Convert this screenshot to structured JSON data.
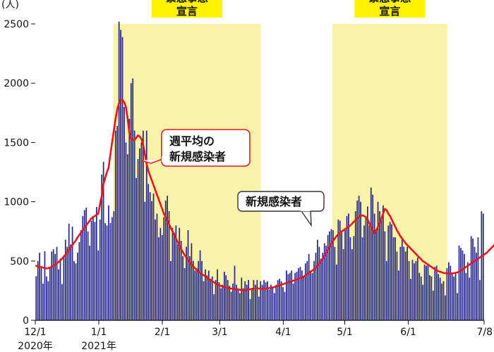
{
  "chart_data": {
    "type": "bar",
    "unit_label": "(人)",
    "y_ticks": [
      0,
      500,
      1000,
      1500,
      2000,
      2500
    ],
    "ylim": [
      0,
      2500
    ],
    "x_start": "2020-12-01",
    "x_end": "2021-07-08",
    "x_ticks": [
      {
        "date": "2020-12-01",
        "label": "12/1",
        "sublabel": "2020年"
      },
      {
        "date": "2021-01-01",
        "label": "1/1",
        "sublabel": "2021年"
      },
      {
        "date": "2021-02-01",
        "label": "2/1",
        "sublabel": ""
      },
      {
        "date": "2021-03-01",
        "label": "3/1",
        "sublabel": ""
      },
      {
        "date": "2021-04-01",
        "label": "4/1",
        "sublabel": ""
      },
      {
        "date": "2021-05-01",
        "label": "5/1",
        "sublabel": ""
      },
      {
        "date": "2021-06-01",
        "label": "6/1",
        "sublabel": ""
      },
      {
        "date": "2021-07-08",
        "label": "7/8",
        "sublabel": ""
      }
    ],
    "emergency_periods": [
      {
        "start": "2021-01-08",
        "end": "2021-03-21",
        "label_line1": "緊急事態",
        "label_line2": "宣言"
      },
      {
        "start": "2021-04-25",
        "end": "2021-06-20",
        "label_line1": "緊急事態",
        "label_line2": "宣言"
      }
    ],
    "series": [
      {
        "name": "新規感染者",
        "color": "#2a2a8a",
        "type": "bar",
        "values": [
          372,
          500,
          570,
          450,
          310,
          583,
          370,
          330,
          450,
          580,
          600,
          560,
          620,
          430,
          520,
          306,
          530,
          680,
          620,
          815,
          640,
          790,
          500,
          480,
          570,
          660,
          760,
          880,
          930,
          950,
          750,
          630,
          840,
          880,
          830,
          956,
          590,
          850,
          1230,
          1337,
          820,
          800,
          970,
          820,
          870,
          920,
          1600,
          1640,
          2520,
          2450,
          2390,
          1800,
          1500,
          1400,
          1700,
          2000,
          2040,
          1600,
          1200,
          1360,
          1450,
          1500,
          1600,
          1000,
          1600,
          1150,
          1080,
          1005,
          1070,
          850,
          900,
          700,
          780,
          720,
          870,
          1010,
          1050,
          920,
          500,
          780,
          740,
          800,
          640,
          780,
          670,
          540,
          440,
          620,
          760,
          540,
          650,
          500,
          420,
          440,
          500,
          590,
          500,
          330,
          430,
          380,
          420,
          350,
          370,
          220,
          340,
          430,
          320,
          270,
          300,
          410,
          380,
          340,
          290,
          240,
          310,
          460,
          300,
          270,
          230,
          360,
          270,
          330,
          300,
          340,
          180,
          270,
          340,
          300,
          340,
          200,
          330,
          300,
          340,
          320,
          330,
          260,
          300,
          280,
          230,
          300,
          340,
          350,
          330,
          280,
          240,
          420,
          390,
          400,
          420,
          310,
          400,
          410,
          440,
          450,
          420,
          370,
          480,
          500,
          560,
          420,
          400,
          500,
          570,
          680,
          620,
          520,
          570,
          650,
          630,
          720,
          750,
          770,
          760,
          620,
          470,
          850,
          840,
          740,
          600,
          760,
          880,
          900,
          700,
          600,
          710,
          920,
          1010,
          1050,
          1000,
          700,
          800,
          870,
          960,
          800,
          1120,
          1060,
          900,
          760,
          1000,
          920,
          850,
          970,
          750,
          500,
          800,
          830,
          810,
          700,
          700,
          580,
          420,
          620,
          680,
          620,
          580,
          620,
          500,
          350,
          510,
          480,
          500,
          530,
          400,
          370,
          300,
          470,
          460,
          470,
          380,
          370,
          250,
          450,
          460,
          390,
          360,
          310,
          330,
          210,
          440,
          490,
          460,
          390,
          370,
          400,
          230,
          630,
          610,
          590,
          560,
          400,
          490,
          360,
          710,
          690,
          620,
          570,
          700,
          340,
          920,
          900
        ]
      },
      {
        "name": "週平均の新規感染者",
        "color": "#e8141e",
        "type": "line",
        "values": [
          460,
          455,
          452,
          450,
          445,
          440,
          438,
          440,
          445,
          450,
          460,
          470,
          480,
          492,
          505,
          520,
          538,
          555,
          575,
          595,
          615,
          635,
          655,
          675,
          700,
          720,
          740,
          760,
          780,
          800,
          820,
          840,
          860,
          870,
          880,
          890,
          900,
          980,
          1050,
          1150,
          1200,
          1250,
          1290,
          1400,
          1500,
          1600,
          1700,
          1780,
          1830,
          1860,
          1860,
          1840,
          1800,
          1700,
          1580,
          1530,
          1520,
          1520,
          1540,
          1560,
          1550,
          1530,
          1480,
          1400,
          1320,
          1260,
          1220,
          1180,
          1140,
          1100,
          1060,
          1020,
          980,
          940,
          900,
          870,
          840,
          810,
          780,
          750,
          720,
          690,
          660,
          630,
          600,
          575,
          550,
          530,
          510,
          490,
          470,
          455,
          440,
          425,
          410,
          400,
          390,
          380,
          370,
          360,
          350,
          340,
          330,
          320,
          310,
          300,
          295,
          290,
          285,
          280,
          275,
          272,
          270,
          268,
          265,
          262,
          260,
          260,
          258,
          255,
          255,
          255,
          258,
          260,
          262,
          265,
          268,
          270,
          270,
          268,
          266,
          265,
          266,
          268,
          270,
          272,
          275,
          278,
          280,
          285,
          290,
          295,
          300,
          305,
          310,
          315,
          320,
          325,
          330,
          335,
          340,
          345,
          350,
          355,
          360,
          370,
          380,
          390,
          400,
          410,
          420,
          430,
          440,
          460,
          480,
          500,
          520,
          545,
          570,
          595,
          620,
          645,
          670,
          690,
          710,
          725,
          740,
          750,
          760,
          770,
          780,
          790,
          800,
          815,
          830,
          845,
          860,
          870,
          880,
          885,
          880,
          870,
          850,
          820,
          790,
          760,
          730,
          760,
          790,
          820,
          860,
          900,
          940,
          930,
          900,
          880,
          850,
          820,
          790,
          760,
          735,
          710,
          690,
          670,
          650,
          635,
          620,
          605,
          590,
          575,
          560,
          545,
          530,
          515,
          500,
          490,
          480,
          470,
          460,
          450,
          440,
          430,
          420,
          415,
          410,
          405,
          400,
          398,
          396,
          395,
          395,
          396,
          398,
          400,
          405,
          410,
          420,
          430,
          440,
          450,
          460,
          470,
          480,
          490,
          500,
          510,
          520,
          530,
          540,
          550,
          560,
          570,
          585,
          600,
          615,
          630,
          645,
          655,
          665,
          670,
          675,
          680
        ]
      }
    ],
    "annotations": [
      {
        "line1": "週平均の",
        "line2": "新規感染者",
        "target_series": "週平均の新規感染者"
      },
      {
        "line1": "新規感染者",
        "line2": "",
        "target_series": "新規感染者"
      }
    ]
  }
}
